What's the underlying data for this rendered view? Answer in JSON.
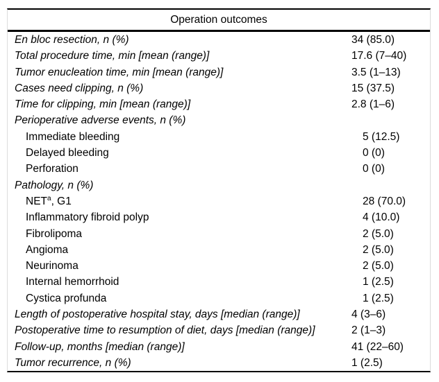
{
  "table": {
    "title": "Operation outcomes",
    "rows": [
      {
        "label": "En bloc resection, n (%)",
        "value": "34 (85.0)",
        "style": "main"
      },
      {
        "label": "Total procedure time, min [mean (range)]",
        "value": "17.6 (7–40)",
        "style": "main"
      },
      {
        "label": "Tumor enucleation time, min [mean (range)]",
        "value": "3.5 (1–13)",
        "style": "main"
      },
      {
        "label": "Cases need clipping, n (%)",
        "value": "15 (37.5)",
        "style": "main"
      },
      {
        "label": "Time for clipping, min [mean (range)]",
        "value": "2.8 (1–6)",
        "style": "main"
      },
      {
        "label": "Perioperative adverse events, n (%)",
        "value": "",
        "style": "main"
      },
      {
        "label": "Immediate bleeding",
        "value": "5 (12.5)",
        "style": "sub"
      },
      {
        "label": "Delayed bleeding",
        "value": "0 (0)",
        "style": "sub"
      },
      {
        "label": "Perforation",
        "value": "0 (0)",
        "style": "sub"
      },
      {
        "label": "Pathology, n (%)",
        "value": "",
        "style": "main"
      },
      {
        "label": "NET",
        "sup": "a",
        "label_after": ", G1",
        "value": "28 (70.0)",
        "style": "sub"
      },
      {
        "label": "Inflammatory fibroid polyp",
        "value": "4 (10.0)",
        "style": "sub"
      },
      {
        "label": "Fibrolipoma",
        "value": "2 (5.0)",
        "style": "sub"
      },
      {
        "label": "Angioma",
        "value": "2 (5.0)",
        "style": "sub"
      },
      {
        "label": "Neurinoma",
        "value": "2 (5.0)",
        "style": "sub"
      },
      {
        "label": "Internal hemorrhoid",
        "value": "1 (2.5)",
        "style": "sub"
      },
      {
        "label": "Cystica profunda",
        "value": "1 (2.5)",
        "style": "sub"
      },
      {
        "label": "Length of postoperative hospital stay, days [median (range)]",
        "value": "4 (3–6)",
        "style": "main"
      },
      {
        "label": "Postoperative time to resumption of diet, days [median (range)]",
        "value": "2 (1–3)",
        "style": "main"
      },
      {
        "label": "Follow-up, months [median (range)]",
        "value": "41 (22–60)",
        "style": "main"
      },
      {
        "label": "Tumor recurrence, n (%)",
        "value": "1 (2.5)",
        "style": "main"
      }
    ]
  }
}
